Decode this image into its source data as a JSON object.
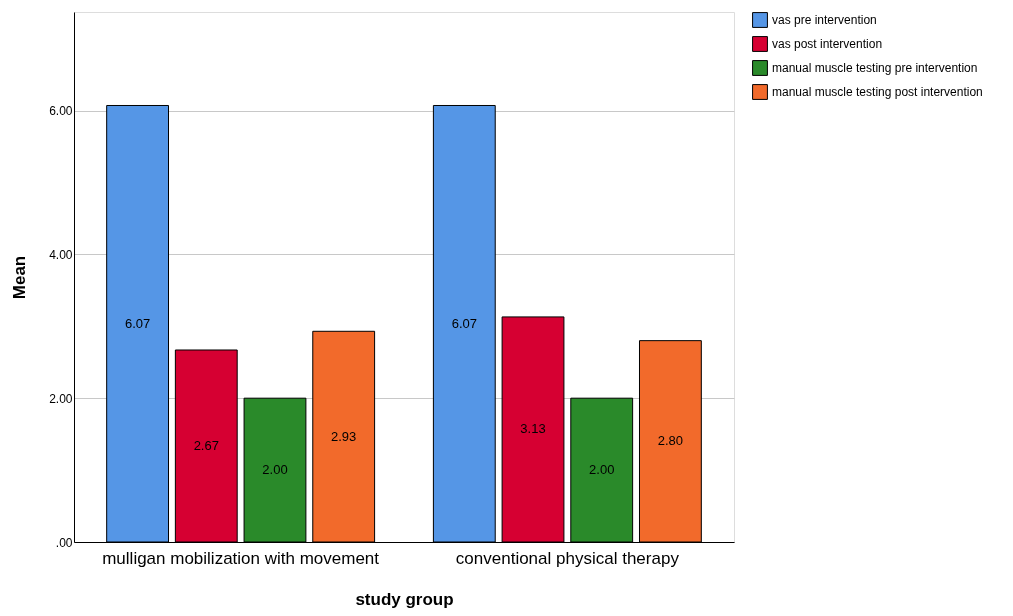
{
  "chart_data": {
    "type": "bar",
    "xlabel": "study group",
    "ylabel": "Mean",
    "categories": [
      "mulligan mobilization with movement",
      "conventional physical therapy"
    ],
    "series": [
      {
        "name": "vas pre intervention",
        "color": "#5596e6",
        "values": [
          6.07,
          6.07
        ],
        "value_labels": [
          "6.07",
          "6.07"
        ]
      },
      {
        "name": "vas post intervention",
        "color": "#d60032",
        "values": [
          2.67,
          3.13
        ],
        "value_labels": [
          "2.67",
          "3.13"
        ]
      },
      {
        "name": "manual muscle testing pre intervention",
        "color": "#2a8a2a",
        "values": [
          2.0,
          2.0
        ],
        "value_labels": [
          "2.00",
          "2.00"
        ]
      },
      {
        "name": "manual muscle testing post intervention",
        "color": "#f26a2b",
        "values": [
          2.93,
          2.8
        ],
        "value_labels": [
          "2.93",
          "2.80"
        ]
      }
    ],
    "ylim": [
      0,
      7.37
    ],
    "yticks": [
      {
        "value": 0,
        "label": ".00"
      },
      {
        "value": 2,
        "label": "2.00"
      },
      {
        "value": 4,
        "label": "4.00"
      },
      {
        "value": 6,
        "label": "6.00"
      }
    ],
    "grid": "y",
    "legend": "top right"
  }
}
